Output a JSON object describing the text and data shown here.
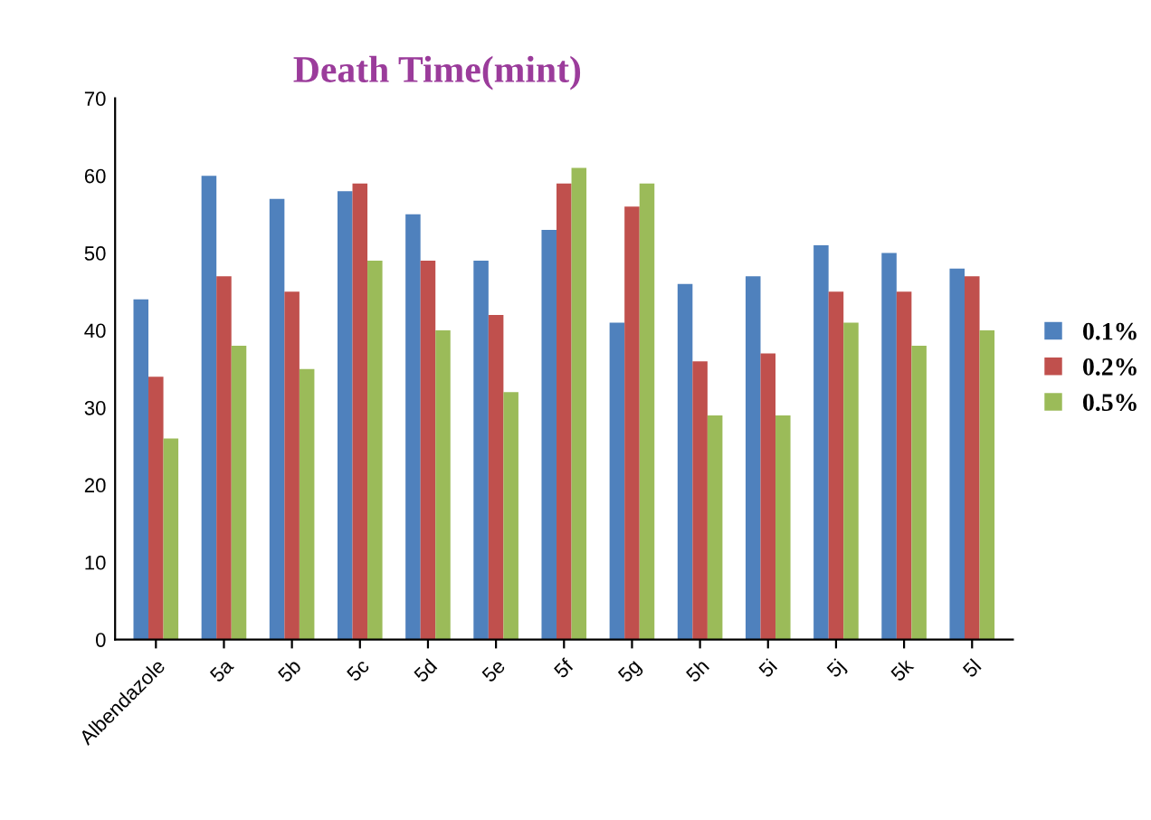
{
  "chart_data": {
    "type": "bar",
    "title": "Death Time(mint)",
    "categories": [
      "Albendazole",
      "5a",
      "5b",
      "5c",
      "5d",
      "5e",
      "5f",
      "5g",
      "5h",
      "5i",
      "5j",
      "5k",
      "5l"
    ],
    "series": [
      {
        "name": "0.1%",
        "color": "#4f81bd",
        "values": [
          44,
          60,
          57,
          58,
          55,
          49,
          53,
          41,
          46,
          47,
          51,
          50,
          48
        ]
      },
      {
        "name": "0.2%",
        "color": "#c0504d",
        "values": [
          34,
          47,
          45,
          59,
          49,
          42,
          59,
          56,
          36,
          37,
          45,
          45,
          47
        ]
      },
      {
        "name": "0.5%",
        "color": "#9bbb59",
        "values": [
          26,
          38,
          35,
          49,
          40,
          32,
          61,
          59,
          29,
          29,
          41,
          38,
          40
        ]
      }
    ],
    "ylim": [
      0,
      70
    ],
    "yticks": [
      0,
      10,
      20,
      30,
      40,
      50,
      60,
      70
    ],
    "grid": false,
    "legend": "right"
  }
}
